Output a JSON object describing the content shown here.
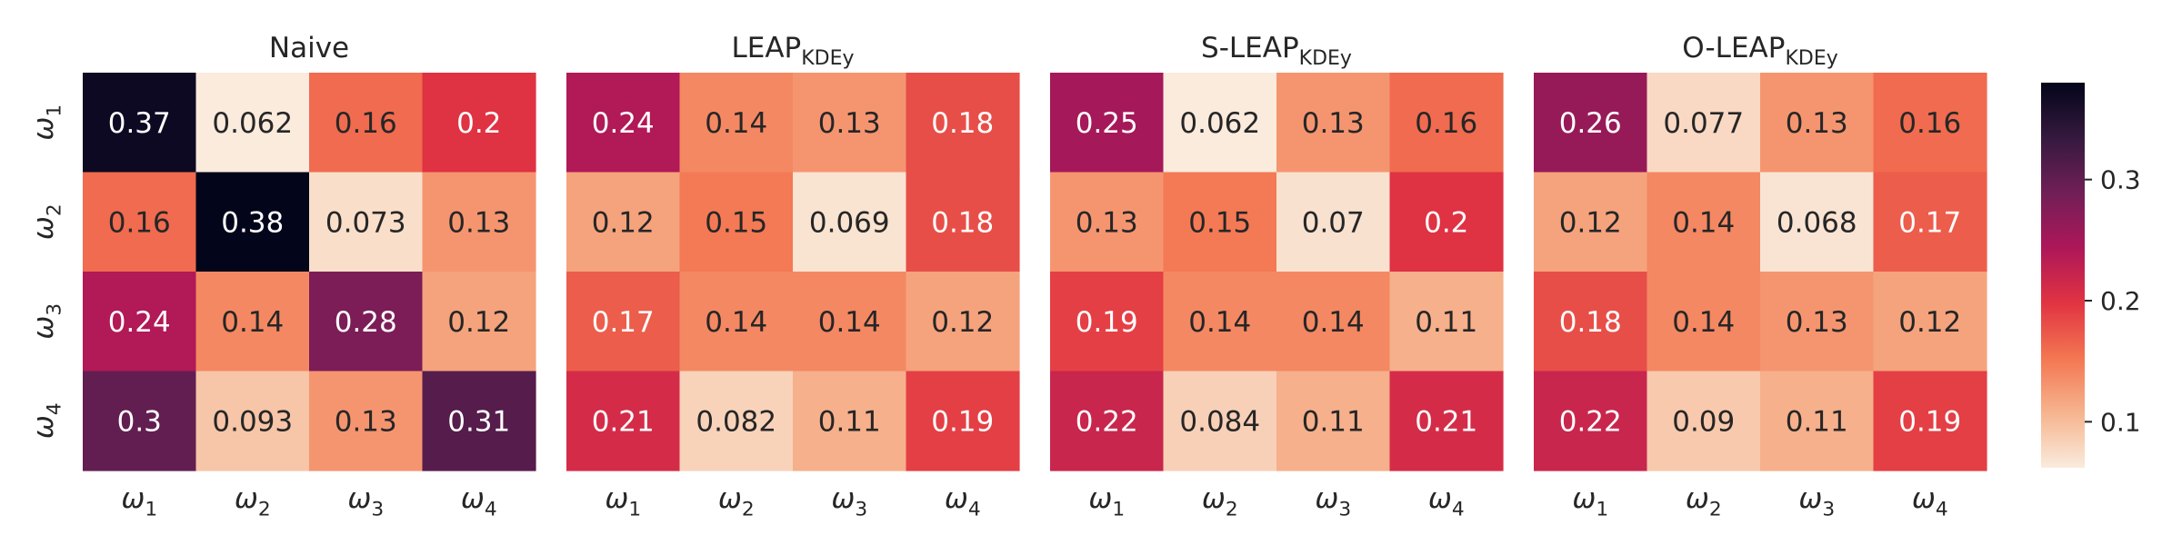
{
  "figure": {
    "row_labels": [
      {
        "base": "ω",
        "sub": "1"
      },
      {
        "base": "ω",
        "sub": "2"
      },
      {
        "base": "ω",
        "sub": "3"
      },
      {
        "base": "ω",
        "sub": "4"
      }
    ],
    "col_labels": [
      {
        "base": "ω",
        "sub": "1"
      },
      {
        "base": "ω",
        "sub": "2"
      },
      {
        "base": "ω",
        "sub": "3"
      },
      {
        "base": "ω",
        "sub": "4"
      }
    ],
    "colorbar": {
      "ticks": [
        0.1,
        0.2,
        0.3
      ],
      "tick_labels": [
        "0.1",
        "0.2",
        "0.3"
      ],
      "range": [
        0.062,
        0.38
      ],
      "colormap": "rocket_r",
      "stops": [
        "#faebdd",
        "#f6b48e",
        "#f37651",
        "#e13342",
        "#ad1759",
        "#701f57",
        "#35193e",
        "#03051a"
      ]
    }
  },
  "chart_data": [
    {
      "type": "heatmap",
      "title": "Naive",
      "title_sub": "",
      "values": [
        [
          0.37,
          0.062,
          0.16,
          0.2
        ],
        [
          0.16,
          0.38,
          0.073,
          0.13
        ],
        [
          0.24,
          0.14,
          0.28,
          0.12
        ],
        [
          0.3,
          0.093,
          0.13,
          0.31
        ]
      ]
    },
    {
      "type": "heatmap",
      "title": "LEAP",
      "title_sub": "KDEy",
      "values": [
        [
          0.24,
          0.14,
          0.13,
          0.18
        ],
        [
          0.12,
          0.15,
          0.069,
          0.18
        ],
        [
          0.17,
          0.14,
          0.14,
          0.12
        ],
        [
          0.21,
          0.082,
          0.11,
          0.19
        ]
      ]
    },
    {
      "type": "heatmap",
      "title": "S-LEAP",
      "title_sub": "KDEy",
      "values": [
        [
          0.25,
          0.062,
          0.13,
          0.16
        ],
        [
          0.13,
          0.15,
          0.07,
          0.2
        ],
        [
          0.19,
          0.14,
          0.14,
          0.11
        ],
        [
          0.22,
          0.084,
          0.11,
          0.21
        ]
      ]
    },
    {
      "type": "heatmap",
      "title": "O-LEAP",
      "title_sub": "KDEy",
      "values": [
        [
          0.26,
          0.077,
          0.13,
          0.16
        ],
        [
          0.12,
          0.14,
          0.068,
          0.17
        ],
        [
          0.18,
          0.14,
          0.13,
          0.12
        ],
        [
          0.22,
          0.09,
          0.11,
          0.19
        ]
      ]
    }
  ]
}
